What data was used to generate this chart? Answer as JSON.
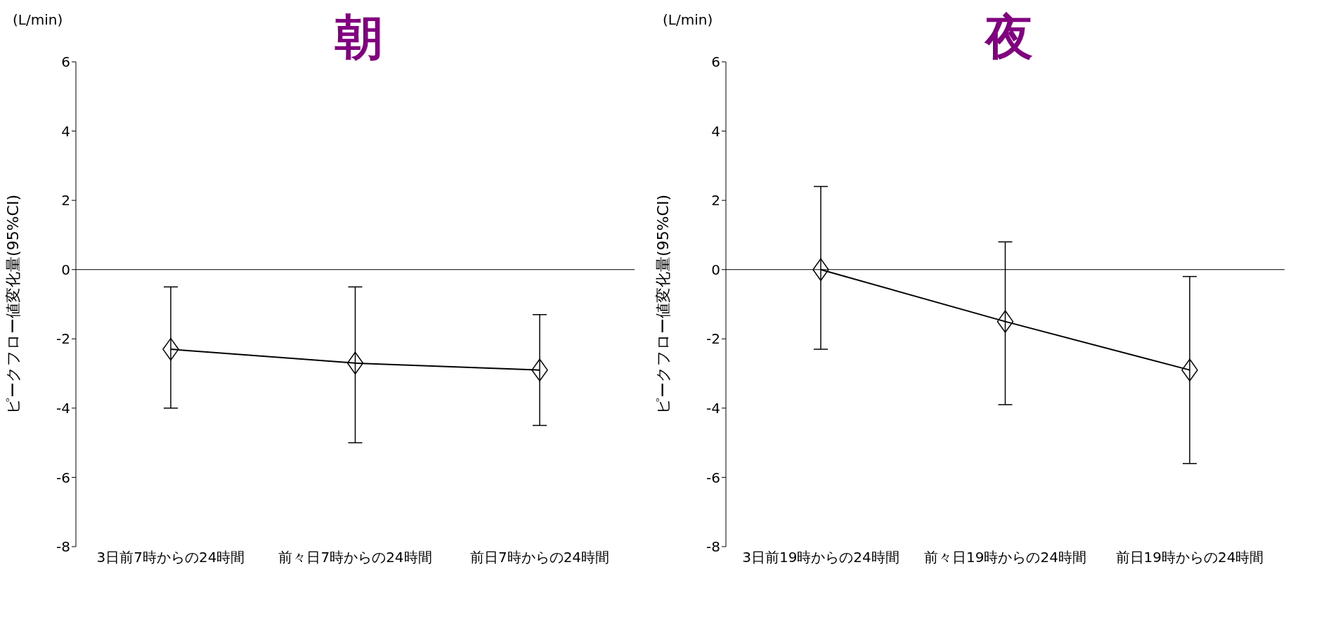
{
  "chart_data": [
    {
      "type": "line",
      "title": "朝",
      "ylabel": "ピークフロー値変化量(95%CI)",
      "annotations": [
        "(L/min)"
      ],
      "categories": [
        "3日前7時からの24時間",
        "前々日7時からの24時間",
        "前日7時からの24時間"
      ],
      "series": [
        {
          "color": "#000000",
          "values": [
            -2.3,
            -2.7,
            -2.9
          ],
          "errors": [
            [
              -4.0,
              -0.5
            ],
            [
              -5.0,
              -0.5
            ],
            [
              -4.5,
              -1.3
            ]
          ]
        }
      ],
      "ylim": [
        -8,
        6
      ],
      "yticks": [
        -8,
        -6,
        -4,
        -2,
        0,
        2,
        4,
        6
      ],
      "ref_lines": [
        {
          "axis": "y",
          "value": 0,
          "color": "#000000"
        }
      ],
      "grid": false,
      "legend": false,
      "marker": "diamond",
      "line_style": "solid"
    },
    {
      "type": "line",
      "title": "夜",
      "ylabel": "ピークフロー値変化量(95%CI)",
      "annotations": [
        "(L/min)"
      ],
      "categories": [
        "3日前19時からの24時間",
        "前々日19時からの24時間",
        "前日19時からの24時間"
      ],
      "series": [
        {
          "color": "#000000",
          "values": [
            0.0,
            -1.5,
            -2.9
          ],
          "errors": [
            [
              -2.3,
              2.4
            ],
            [
              -3.9,
              0.8
            ],
            [
              -5.6,
              -0.2
            ]
          ]
        }
      ],
      "ylim": [
        -8,
        6
      ],
      "yticks": [
        -8,
        -6,
        -4,
        -2,
        0,
        2,
        4,
        6
      ],
      "ref_lines": [
        {
          "axis": "y",
          "value": 0,
          "color": "#000000"
        }
      ],
      "grid": false,
      "legend": false,
      "marker": "diamond",
      "line_style": "solid"
    }
  ]
}
